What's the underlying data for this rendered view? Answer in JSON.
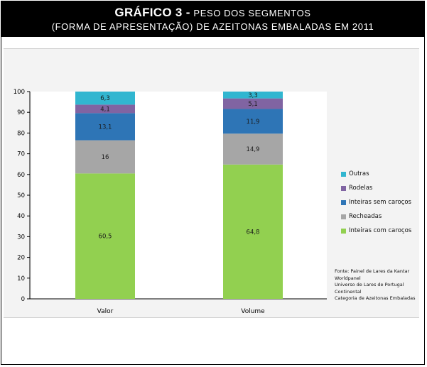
{
  "title": {
    "bold": "GRÁFICO 3 -",
    "line1": "PESO DOS SEGMENTOS",
    "line2": "(FORMA DE APRESENTAÇÃO) DE AZEITONAS EMBALADAS EM 2011"
  },
  "chart_data": {
    "type": "bar",
    "stacked": true,
    "categories": [
      "Valor",
      "Volume"
    ],
    "ylim": [
      0,
      100
    ],
    "yticks": [
      0,
      10,
      20,
      30,
      40,
      50,
      60,
      70,
      80,
      90,
      100
    ],
    "series": [
      {
        "name": "Inteiras com caroços",
        "values": [
          60.5,
          64.8
        ],
        "labels": [
          "60,5",
          "64,8"
        ],
        "color": "#92d050"
      },
      {
        "name": "Recheadas",
        "values": [
          16,
          14.9
        ],
        "labels": [
          "16",
          "14,9"
        ],
        "color": "#a6a6a6"
      },
      {
        "name": "Inteiras sem caroços",
        "values": [
          13.1,
          11.9
        ],
        "labels": [
          "13,1",
          "11,9"
        ],
        "color": "#2e75b6"
      },
      {
        "name": "Rodelas",
        "values": [
          4.1,
          5.1
        ],
        "labels": [
          "4,1",
          "5,1"
        ],
        "color": "#8064a2"
      },
      {
        "name": "Outras",
        "values": [
          6.3,
          3.3
        ],
        "labels": [
          "6,3",
          "3,3"
        ],
        "color": "#31b6d0"
      }
    ],
    "legend_order": [
      "Outras",
      "Rodelas",
      "Inteiras sem caroços",
      "Recheadas",
      "Inteiras com caroços"
    ],
    "legend_position": "right",
    "grid": false
  },
  "source_lines": [
    "Fonte: Painel de Lares da Kantar",
    "Worldpanel",
    "Universo de Lares de Portugal",
    "Continental",
    "Categoria de Azeitonas Embaladas"
  ]
}
